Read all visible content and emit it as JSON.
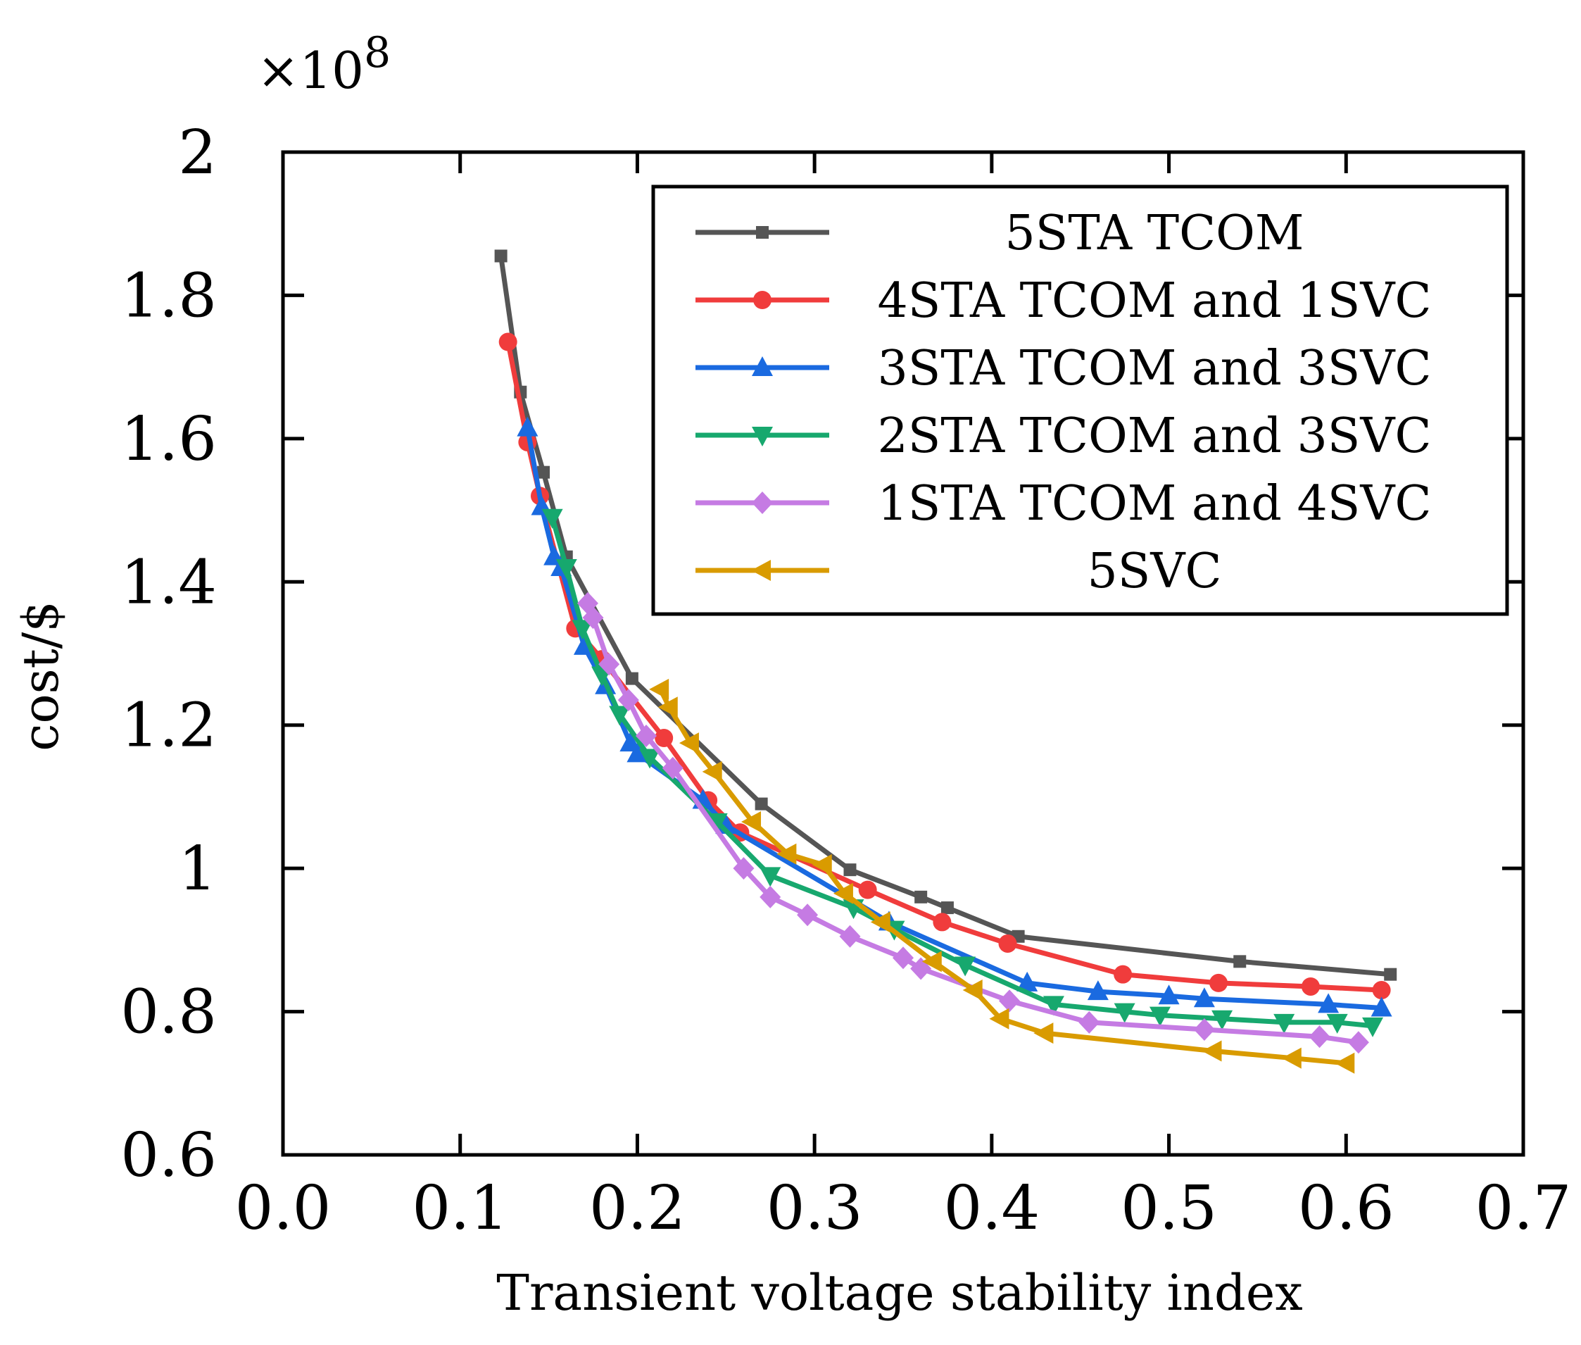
{
  "chart_data": {
    "type": "line",
    "xlabel": "Transient voltage stability index",
    "ylabel": "cost/$",
    "exponent_label": "×10",
    "exponent_power": "8",
    "xlim": [
      0.0,
      0.7
    ],
    "ylim": [
      0.6,
      2.0
    ],
    "xticks": [
      "0.0",
      "0.1",
      "0.2",
      "0.3",
      "0.4",
      "0.5",
      "0.6",
      "0.7"
    ],
    "yticks": [
      "0.6",
      "0.8",
      "1",
      "1.2",
      "1.4",
      "1.6",
      "1.8",
      "2"
    ],
    "xtick_values": [
      0.0,
      0.1,
      0.2,
      0.3,
      0.4,
      0.5,
      0.6,
      0.7
    ],
    "ytick_values": [
      0.6,
      0.8,
      1.0,
      1.2,
      1.4,
      1.6,
      1.8,
      2.0
    ],
    "grid": false,
    "legend_position": "top-right",
    "series": [
      {
        "name": "5STA TCOM",
        "color": "#555555",
        "marker": "square",
        "x": [
          0.123,
          0.134,
          0.147,
          0.16,
          0.197,
          0.27,
          0.32,
          0.36,
          0.375,
          0.415,
          0.54,
          0.625
        ],
        "y": [
          1.855,
          1.665,
          1.553,
          1.435,
          1.265,
          1.09,
          0.998,
          0.96,
          0.945,
          0.905,
          0.87,
          0.852
        ]
      },
      {
        "name": "4STA TCOM and 1SVC",
        "color": "#F03C3C",
        "marker": "circle",
        "x": [
          0.127,
          0.138,
          0.145,
          0.165,
          0.18,
          0.215,
          0.24,
          0.258,
          0.33,
          0.372,
          0.409,
          0.474,
          0.528,
          0.58,
          0.62
        ],
        "y": [
          1.735,
          1.595,
          1.52,
          1.335,
          1.292,
          1.182,
          1.095,
          1.05,
          0.97,
          0.925,
          0.895,
          0.852,
          0.84,
          0.835,
          0.83
        ]
      },
      {
        "name": "3STA TCOM and 3SVC",
        "color": "#1A6AE0",
        "marker": "triangle-up",
        "x": [
          0.138,
          0.146,
          0.153,
          0.157,
          0.17,
          0.182,
          0.196,
          0.2,
          0.237,
          0.25,
          0.342,
          0.42,
          0.46,
          0.5,
          0.52,
          0.59,
          0.62
        ],
        "y": [
          1.615,
          1.505,
          1.435,
          1.42,
          1.31,
          1.255,
          1.175,
          1.16,
          1.095,
          1.06,
          0.925,
          0.84,
          0.828,
          0.822,
          0.818,
          0.81,
          0.805
        ]
      },
      {
        "name": "2STA TCOM and 3SVC",
        "color": "#17A86E",
        "marker": "triangle-down",
        "x": [
          0.152,
          0.16,
          0.169,
          0.18,
          0.19,
          0.207,
          0.245,
          0.275,
          0.322,
          0.345,
          0.385,
          0.435,
          0.475,
          0.495,
          0.53,
          0.565,
          0.595,
          0.615
        ],
        "y": [
          1.49,
          1.42,
          1.335,
          1.27,
          1.215,
          1.155,
          1.065,
          0.99,
          0.945,
          0.915,
          0.865,
          0.81,
          0.8,
          0.795,
          0.79,
          0.785,
          0.785,
          0.78
        ]
      },
      {
        "name": "1STA TCOM and 4SVC",
        "color": "#C57BE3",
        "marker": "diamond",
        "x": [
          0.172,
          0.175,
          0.184,
          0.195,
          0.205,
          0.22,
          0.26,
          0.275,
          0.296,
          0.32,
          0.35,
          0.36,
          0.41,
          0.455,
          0.52,
          0.585,
          0.607
        ],
        "y": [
          1.37,
          1.35,
          1.285,
          1.235,
          1.185,
          1.14,
          1.0,
          0.96,
          0.935,
          0.905,
          0.875,
          0.86,
          0.815,
          0.785,
          0.775,
          0.765,
          0.757
        ]
      },
      {
        "name": "5SVC",
        "color": "#D99B00",
        "marker": "triangle-left",
        "x": [
          0.213,
          0.218,
          0.23,
          0.243,
          0.265,
          0.285,
          0.305,
          0.317,
          0.338,
          0.367,
          0.39,
          0.405,
          0.43,
          0.525,
          0.57,
          0.6
        ],
        "y": [
          1.25,
          1.225,
          1.175,
          1.135,
          1.065,
          1.02,
          1.005,
          0.965,
          0.925,
          0.87,
          0.83,
          0.79,
          0.77,
          0.745,
          0.735,
          0.728
        ]
      }
    ]
  }
}
